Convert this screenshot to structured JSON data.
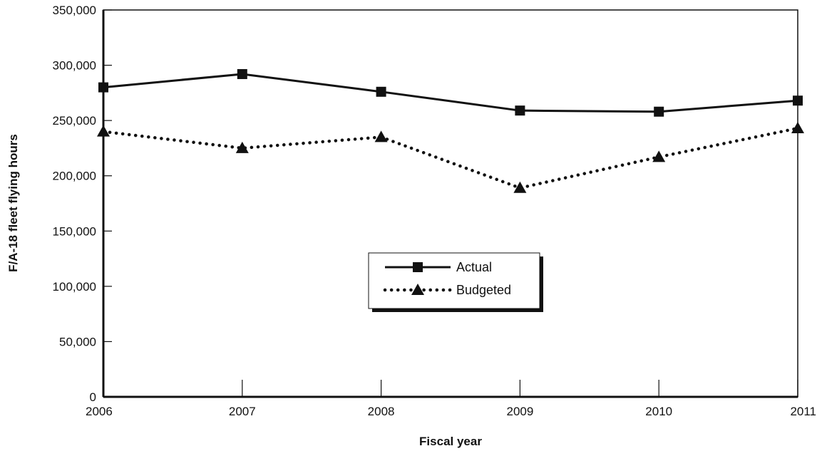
{
  "chart_data": {
    "type": "line",
    "xlabel": "Fiscal year",
    "ylabel": "F/A-18 fleet flying hours",
    "x": [
      2006,
      2007,
      2008,
      2009,
      2010,
      2011
    ],
    "x_tick_labels": [
      "2006",
      "2007",
      "2008",
      "2009",
      "2010",
      "2011"
    ],
    "ylim": [
      0,
      350000
    ],
    "y_ticks": [
      0,
      50000,
      100000,
      150000,
      200000,
      250000,
      300000,
      350000
    ],
    "y_tick_labels": [
      "0",
      "50,000",
      "100,000",
      "150,000",
      "200,000",
      "250,000",
      "300,000",
      "350,000"
    ],
    "grid": false,
    "legend_position": "center",
    "series": [
      {
        "name": "Actual",
        "line_style": "solid",
        "marker": "square",
        "color": "#111111",
        "values": [
          280000,
          292000,
          276000,
          259000,
          258000,
          268000
        ]
      },
      {
        "name": "Budgeted",
        "line_style": "dotted",
        "marker": "triangle",
        "color": "#111111",
        "values": [
          240000,
          225000,
          235000,
          189000,
          217000,
          243000
        ]
      }
    ]
  }
}
